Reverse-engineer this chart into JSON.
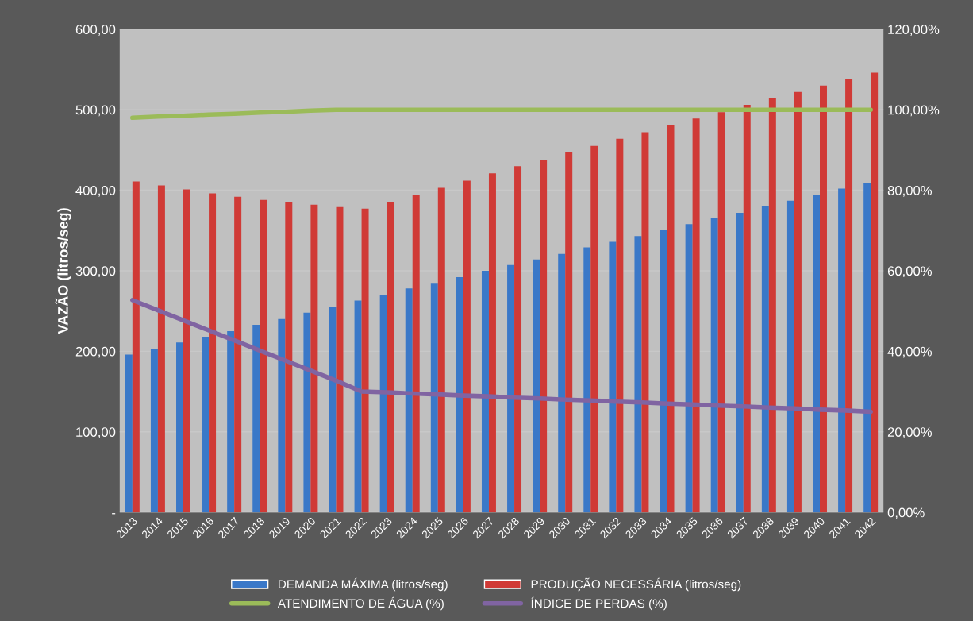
{
  "chart_data": {
    "type": "bar",
    "ylabel": "VAZÃO (litros/seg)",
    "categories": [
      "2013",
      "2014",
      "2015",
      "2016",
      "2017",
      "2018",
      "2019",
      "2020",
      "2021",
      "2022",
      "2023",
      "2024",
      "2025",
      "2026",
      "2027",
      "2028",
      "2029",
      "2030",
      "2031",
      "2032",
      "2033",
      "2034",
      "2035",
      "2036",
      "2037",
      "2038",
      "2039",
      "2040",
      "2041",
      "2042"
    ],
    "series": [
      {
        "name": "DEMANDA MÁXIMA (litros/seg)",
        "color": "#3a78c8",
        "values": [
          196,
          203,
          211,
          218,
          225,
          233,
          240,
          248,
          255,
          263,
          270,
          278,
          285,
          292,
          300,
          307,
          314,
          321,
          329,
          336,
          343,
          351,
          358,
          365,
          372,
          380,
          387,
          394,
          402,
          409
        ]
      },
      {
        "name": "PRODUÇÃO NECESSÁRIA (litros/seg)",
        "color": "#d03a36",
        "values": [
          411,
          406,
          401,
          396,
          392,
          388,
          385,
          382,
          379,
          377,
          385,
          394,
          403,
          412,
          421,
          430,
          438,
          447,
          455,
          464,
          472,
          481,
          489,
          497,
          506,
          514,
          522,
          530,
          538,
          546
        ]
      },
      {
        "name": "ATENDIMENTO DE ÁGUA (%)",
        "type": "line",
        "axis": "y2",
        "color": "#9bbb59",
        "values": [
          98,
          98.3,
          98.5,
          98.8,
          99,
          99.3,
          99.5,
          99.8,
          100,
          100,
          100,
          100,
          100,
          100,
          100,
          100,
          100,
          100,
          100,
          100,
          100,
          100,
          100,
          100,
          100,
          100,
          100,
          100,
          100,
          100
        ]
      },
      {
        "name": "ÍNDICE DE PERDAS (%)",
        "type": "line",
        "axis": "y2",
        "color": "#8064a2",
        "values": [
          52.7,
          50.2,
          47.7,
          45.2,
          42.7,
          40.2,
          37.7,
          35.2,
          32.7,
          30,
          29.8,
          29.5,
          29.3,
          29,
          28.8,
          28.5,
          28.3,
          28,
          27.8,
          27.5,
          27.3,
          27,
          26.8,
          26.5,
          26.3,
          26,
          25.8,
          25.5,
          25.3,
          25
        ]
      }
    ],
    "ylim": [
      0,
      600
    ],
    "yticks": [
      {
        "value": 0,
        "label": "-"
      },
      {
        "value": 100,
        "label": "100,00"
      },
      {
        "value": 200,
        "label": "200,00"
      },
      {
        "value": 300,
        "label": "300,00"
      },
      {
        "value": 400,
        "label": "400,00"
      },
      {
        "value": 500,
        "label": "500,00"
      },
      {
        "value": 600,
        "label": "600,00"
      }
    ],
    "y2lim": [
      0,
      120
    ],
    "y2ticks": [
      {
        "value": 0,
        "label": "0,00%"
      },
      {
        "value": 20,
        "label": "20,00%"
      },
      {
        "value": 40,
        "label": "40,00%"
      },
      {
        "value": 60,
        "label": "60,00%"
      },
      {
        "value": 80,
        "label": "80,00%"
      },
      {
        "value": 100,
        "label": "100,00%"
      },
      {
        "value": 120,
        "label": "120,00%"
      }
    ],
    "grid": "y",
    "legend": "bottom",
    "line_style": "solid",
    "marker": "none"
  }
}
